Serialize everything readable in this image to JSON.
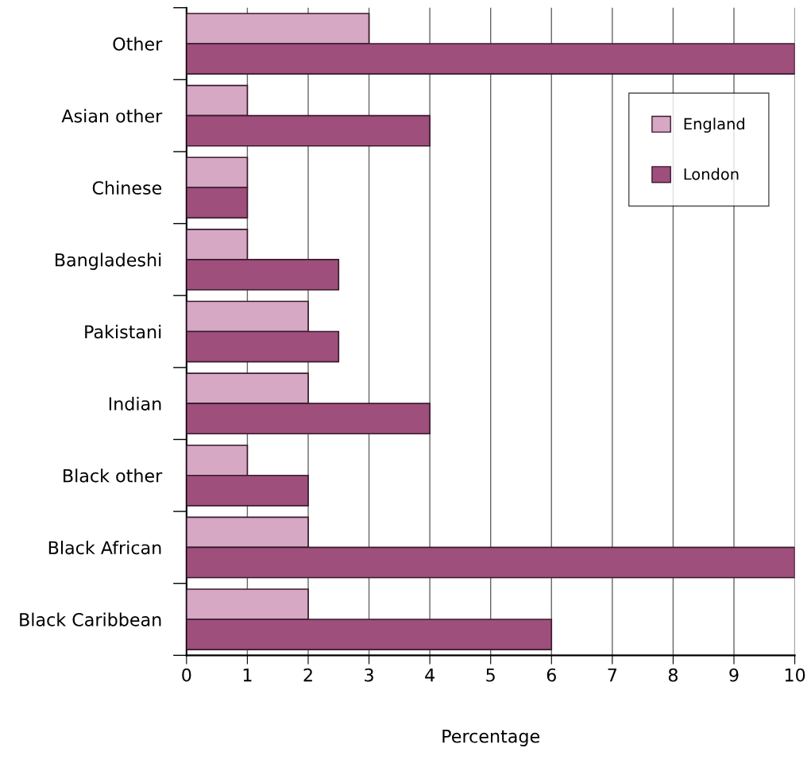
{
  "chart_data": {
    "type": "bar",
    "orientation": "horizontal",
    "xlabel": "Percentage",
    "categories": [
      "Other",
      "Asian other",
      "Chinese",
      "Bangladeshi",
      "Pakistani",
      "Indian",
      "Black other",
      "Black African",
      "Black Caribbean"
    ],
    "series": [
      {
        "name": "England",
        "color": "#d6a8c3",
        "values": [
          3,
          1,
          1,
          1,
          2,
          2,
          1,
          2,
          2
        ]
      },
      {
        "name": "London",
        "color": "#9e4f7c",
        "values": [
          10,
          4,
          1,
          2.5,
          2.5,
          4,
          2,
          10,
          6
        ]
      }
    ],
    "xlim": [
      0,
      10
    ],
    "xticks": [
      0,
      1,
      2,
      3,
      4,
      5,
      6,
      7,
      8,
      9,
      10
    ],
    "grid": "x",
    "legend": "top right"
  }
}
